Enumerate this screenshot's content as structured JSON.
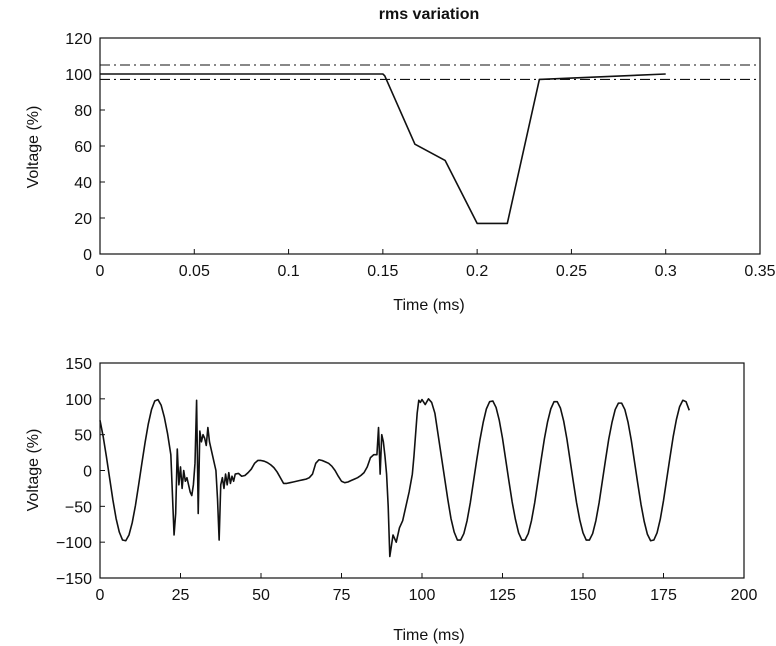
{
  "chart_data": [
    {
      "type": "line",
      "title": "rms variation",
      "xlabel": "Time (ms)",
      "ylabel": "Voltage (%)",
      "xlim": [
        0,
        0.35
      ],
      "ylim": [
        0,
        120
      ],
      "xticks": [
        0,
        0.05,
        0.1,
        0.15,
        0.2,
        0.25,
        0.3,
        0.35
      ],
      "xtick_labels": [
        "0",
        "0.05",
        "0.1",
        "0.15",
        "0.2",
        "0.25",
        "0.3",
        "0.35"
      ],
      "yticks": [
        0,
        20,
        40,
        60,
        80,
        100,
        120
      ],
      "ytick_labels": [
        "0",
        "20",
        "40",
        "60",
        "80",
        "100",
        "120"
      ],
      "grid": false,
      "series": [
        {
          "x": [
            0,
            0.15,
            0.151,
            0.167,
            0.183,
            0.2,
            0.216,
            0.233,
            0.3
          ],
          "y": [
            100,
            100,
            99,
            61,
            52,
            17,
            17,
            97,
            100
          ]
        }
      ],
      "reference_lines": [
        {
          "y": 105,
          "style": "dash-dot"
        },
        {
          "y": 97,
          "style": "dash-dot"
        }
      ]
    },
    {
      "type": "line",
      "title": "",
      "xlabel": "Time (ms)",
      "ylabel": "Voltage (%)",
      "xlim": [
        0,
        200
      ],
      "ylim": [
        -150,
        150
      ],
      "xticks": [
        0,
        25,
        50,
        75,
        100,
        125,
        150,
        175,
        200
      ],
      "xtick_labels": [
        "0",
        "25",
        "50",
        "75",
        "100",
        "125",
        "150",
        "175",
        "200"
      ],
      "yticks": [
        -150,
        -100,
        -50,
        0,
        50,
        100,
        150
      ],
      "ytick_labels": [
        "−150",
        "−100",
        "−50",
        "0",
        "50",
        "100",
        "150"
      ],
      "grid": false,
      "series": [
        {
          "x": [
            0,
            1,
            2,
            3,
            4,
            5,
            6,
            7,
            8,
            9,
            10,
            11,
            12,
            13,
            14,
            15,
            16,
            17,
            18,
            19,
            20,
            21,
            22,
            23,
            23.5,
            24,
            24.5,
            25,
            25.5,
            26,
            26.5,
            27,
            27.5,
            28,
            28.5,
            29,
            29.5,
            30,
            30.5,
            31,
            31.5,
            32,
            32.5,
            33,
            33.5,
            34,
            35,
            36,
            36.5,
            37,
            37.5,
            38,
            38.5,
            39,
            39.5,
            40,
            40.5,
            41,
            41.5,
            42,
            43,
            44,
            45,
            46,
            47,
            48,
            49,
            50,
            51,
            52,
            53,
            54,
            55,
            56,
            57,
            58,
            59,
            60,
            61,
            62,
            63,
            64,
            65,
            66,
            67,
            68,
            69,
            70,
            71,
            72,
            73,
            74,
            75,
            76,
            77,
            78,
            79,
            80,
            81,
            82,
            83,
            84,
            85,
            85.5,
            86,
            86.5,
            87,
            87.5,
            88,
            88.5,
            89,
            89.5,
            90,
            91,
            92,
            93,
            94,
            95,
            96,
            97,
            97.5,
            98,
            98.5,
            99,
            99.5,
            100,
            101,
            102,
            103,
            104,
            105,
            106,
            107,
            108,
            109,
            110,
            111,
            112,
            113,
            114,
            115,
            116,
            117,
            118,
            119,
            120,
            121,
            122,
            123,
            124,
            125,
            126,
            127,
            128,
            129,
            130,
            131,
            132,
            133,
            134,
            135,
            136,
            137,
            138,
            139,
            140,
            141,
            142,
            143,
            144,
            145,
            146,
            147,
            148,
            149,
            150,
            151,
            152,
            153,
            154,
            155,
            156,
            157,
            158,
            159,
            160,
            161,
            162,
            163,
            164,
            165,
            166,
            167,
            168,
            169,
            170,
            171,
            172,
            173,
            174,
            175,
            176,
            177,
            178,
            179,
            180,
            181,
            182,
            183
          ],
          "y": [
            70,
            47,
            19,
            -11,
            -41,
            -67,
            -86,
            -97,
            -98,
            -90,
            -73,
            -49,
            -20,
            10,
            39,
            65,
            85,
            97,
            99,
            91,
            74,
            51,
            22,
            -90,
            -60,
            30,
            -20,
            5,
            -25,
            0,
            -15,
            -10,
            -20,
            -30,
            -35,
            -20,
            10,
            98,
            -60,
            55,
            40,
            50,
            45,
            35,
            60,
            40,
            20,
            0,
            -40,
            -97,
            -20,
            -10,
            -25,
            -5,
            -20,
            -3,
            -18,
            -8,
            -15,
            -5,
            -4,
            -8,
            -7,
            -3,
            2,
            10,
            14,
            14,
            13,
            11,
            8,
            4,
            -2,
            -10,
            -18,
            -18,
            -17,
            -16,
            -15,
            -14,
            -13,
            -12,
            -10,
            -5,
            10,
            15,
            14,
            12,
            10,
            6,
            0,
            -8,
            -15,
            -17,
            -16,
            -14,
            -12,
            -10,
            -7,
            -3,
            5,
            18,
            22,
            22,
            22,
            60,
            -5,
            50,
            40,
            20,
            -5,
            -50,
            -120,
            -90,
            -100,
            -80,
            -70,
            -50,
            -30,
            -5,
            20,
            50,
            80,
            98,
            95,
            99,
            92,
            100,
            95,
            80,
            50,
            20,
            -10,
            -40,
            -67,
            -86,
            -97,
            -97,
            -88,
            -70,
            -45,
            -15,
            15,
            43,
            67,
            86,
            96,
            97,
            88,
            70,
            45,
            15,
            -15,
            -44,
            -68,
            -87,
            -97,
            -97,
            -88,
            -70,
            -45,
            -15,
            15,
            44,
            68,
            86,
            96,
            96,
            87,
            69,
            44,
            14,
            -16,
            -45,
            -69,
            -87,
            -97,
            -97,
            -88,
            -70,
            -45,
            -15,
            15,
            44,
            67,
            85,
            94,
            94,
            85,
            67,
            42,
            12,
            -18,
            -47,
            -71,
            -89,
            -98,
            -97,
            -87,
            -68,
            -42,
            -12,
            18,
            47,
            71,
            89,
            98,
            96,
            84
          ]
        }
      ]
    }
  ]
}
